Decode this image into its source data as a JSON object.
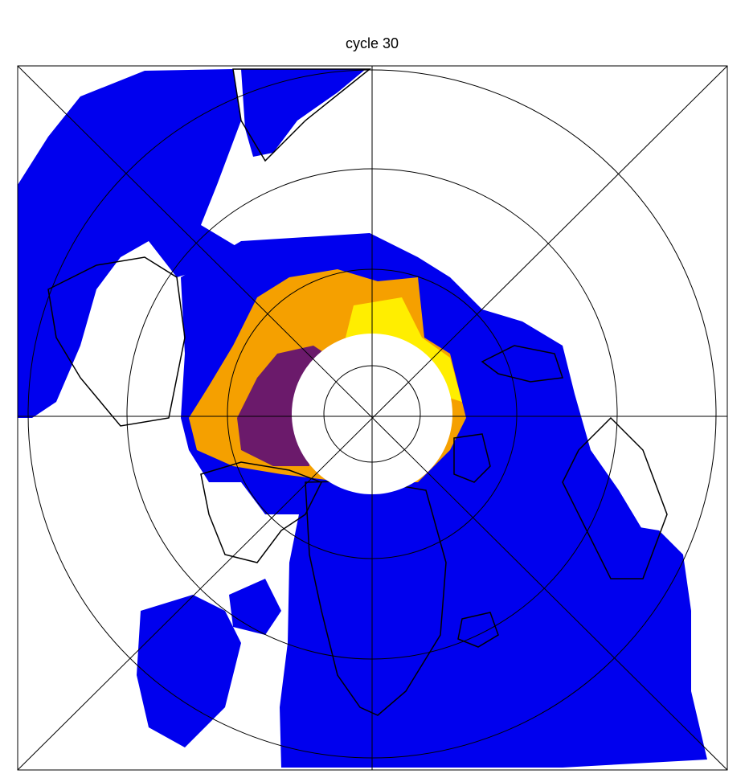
{
  "title": "cycle 30"
}
